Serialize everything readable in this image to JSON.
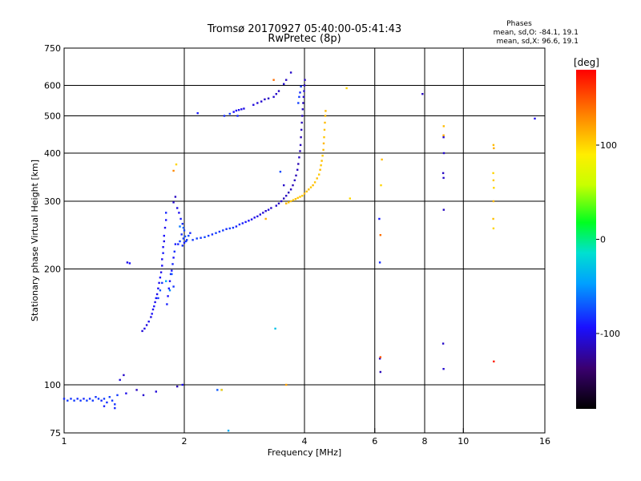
{
  "chart_data": {
    "type": "scatter",
    "title": "Tromsø 20170927 05:40:00-05:41:43",
    "subtitle": "RwPretec (8p)",
    "xlabel": "Frequency [MHz]",
    "ylabel": "Stationary phase Virtual Height [km]",
    "x_scale": "log",
    "y_scale": "log",
    "xlim": [
      1,
      16
    ],
    "ylim": [
      75,
      750
    ],
    "x_ticks": [
      1,
      2,
      4,
      6,
      8,
      10,
      16
    ],
    "y_ticks": [
      75,
      100,
      200,
      300,
      400,
      500,
      600,
      750
    ],
    "grid": true,
    "stats": {
      "heading": "Phases",
      "line_o": "mean, sd,O: -84.1, 19.1",
      "line_x": "mean, sd,X:  96.6, 19.1"
    },
    "colorbar": {
      "label": "[deg]",
      "range": [
        -180,
        180
      ],
      "ticks": [
        100,
        0,
        -100
      ]
    },
    "series": [
      {
        "name": "",
        "mode": "O",
        "points": [
          [
            1.0,
            92,
            -85
          ],
          [
            1.02,
            91,
            -80
          ],
          [
            1.04,
            92,
            -82
          ],
          [
            1.06,
            91,
            -79
          ],
          [
            1.08,
            92,
            -84
          ],
          [
            1.1,
            91,
            -81
          ],
          [
            1.12,
            92,
            -86
          ],
          [
            1.14,
            91,
            -78
          ],
          [
            1.16,
            92,
            -83
          ],
          [
            1.18,
            91,
            -80
          ],
          [
            1.2,
            93,
            -82
          ],
          [
            1.22,
            92,
            -79
          ],
          [
            1.24,
            91,
            -85
          ],
          [
            1.26,
            92,
            -80
          ],
          [
            1.28,
            90,
            -84
          ],
          [
            1.3,
            93,
            -78
          ],
          [
            1.32,
            91,
            -81
          ],
          [
            1.34,
            89,
            -83
          ],
          [
            1.36,
            94,
            -80
          ],
          [
            1.26,
            88,
            -88
          ],
          [
            1.34,
            87,
            -86
          ],
          [
            1.38,
            103,
            -105
          ],
          [
            1.41,
            106,
            -110
          ],
          [
            1.43,
            95,
            -100
          ],
          [
            1.52,
            97,
            -112
          ],
          [
            1.58,
            94,
            -108
          ],
          [
            1.7,
            96,
            -105
          ],
          [
            1.92,
            99,
            -115
          ],
          [
            1.98,
            100,
            -95
          ],
          [
            2.48,
            97,
            -86
          ],
          [
            2.58,
            76,
            -40
          ],
          [
            1.44,
            208,
            -100
          ],
          [
            1.46,
            207,
            -95
          ],
          [
            1.57,
            138,
            -105
          ],
          [
            1.59,
            140,
            -100
          ],
          [
            1.61,
            143,
            -104
          ],
          [
            1.63,
            146,
            -98
          ],
          [
            1.65,
            150,
            -102
          ],
          [
            1.66,
            153,
            -95
          ],
          [
            1.67,
            157,
            -100
          ],
          [
            1.68,
            160,
            -92
          ],
          [
            1.69,
            164,
            -99
          ],
          [
            1.7,
            168,
            -94
          ],
          [
            1.71,
            172,
            -100
          ],
          [
            1.72,
            178,
            -96
          ],
          [
            1.73,
            184,
            -98
          ],
          [
            1.74,
            190,
            -92
          ],
          [
            1.75,
            196,
            -100
          ],
          [
            1.76,
            204,
            -95
          ],
          [
            1.76,
            212,
            -98
          ],
          [
            1.77,
            220,
            -90
          ],
          [
            1.77,
            228,
            -96
          ],
          [
            1.78,
            236,
            -100
          ],
          [
            1.78,
            244,
            -94
          ],
          [
            1.79,
            256,
            -98
          ],
          [
            1.8,
            268,
            -92
          ],
          [
            1.8,
            280,
            -86
          ],
          [
            1.81,
            162,
            -88
          ],
          [
            1.82,
            170,
            -94
          ],
          [
            1.83,
            178,
            -90
          ],
          [
            1.84,
            186,
            -96
          ],
          [
            1.85,
            194,
            -88
          ],
          [
            1.86,
            198,
            -92
          ],
          [
            1.87,
            206,
            -86
          ],
          [
            1.88,
            214,
            -94
          ],
          [
            1.89,
            222,
            -84
          ],
          [
            1.9,
            232,
            -90
          ],
          [
            1.72,
            168,
            -80
          ],
          [
            1.74,
            176,
            -70
          ],
          [
            1.76,
            184,
            -82
          ],
          [
            1.8,
            186,
            -40
          ],
          [
            1.84,
            176,
            -55
          ],
          [
            1.88,
            180,
            -82
          ],
          [
            1.86,
            194,
            -72
          ],
          [
            1.88,
            298,
            -108
          ],
          [
            1.9,
            308,
            -112
          ],
          [
            1.92,
            288,
            -102
          ],
          [
            1.94,
            280,
            -98
          ],
          [
            1.96,
            270,
            -90
          ],
          [
            1.98,
            262,
            -85
          ],
          [
            1.99,
            256,
            -70
          ],
          [
            2.0,
            252,
            -78
          ],
          [
            1.95,
            258,
            -60
          ],
          [
            1.97,
            246,
            -85
          ],
          [
            1.99,
            240,
            -80
          ],
          [
            2.01,
            243,
            -72
          ],
          [
            2.03,
            238,
            -82
          ],
          [
            2.05,
            244,
            -75
          ],
          [
            2.07,
            248,
            -86
          ],
          [
            1.93,
            232,
            -88
          ],
          [
            1.95,
            236,
            -78
          ],
          [
            1.98,
            230,
            -84
          ],
          [
            2.0,
            234,
            -90
          ],
          [
            2.02,
            236,
            -80
          ],
          [
            2.1,
            238,
            -80
          ],
          [
            2.15,
            240,
            -78
          ],
          [
            2.2,
            241,
            -82
          ],
          [
            2.25,
            242,
            -75
          ],
          [
            2.3,
            244,
            -80
          ],
          [
            2.35,
            246,
            -84
          ],
          [
            2.4,
            248,
            -78
          ],
          [
            2.45,
            250,
            -82
          ],
          [
            2.5,
            252,
            -80
          ],
          [
            2.55,
            254,
            -85
          ],
          [
            2.6,
            255,
            -78
          ],
          [
            2.65,
            256,
            -82
          ],
          [
            2.7,
            258,
            -88
          ],
          [
            2.75,
            261,
            -84
          ],
          [
            2.8,
            263,
            -90
          ],
          [
            2.85,
            265,
            -92
          ],
          [
            2.9,
            267,
            -95
          ],
          [
            2.95,
            269,
            -98
          ],
          [
            3.0,
            272,
            -100
          ],
          [
            3.05,
            274,
            -102
          ],
          [
            3.1,
            277,
            -104
          ],
          [
            3.15,
            280,
            -106
          ],
          [
            3.2,
            283,
            -108
          ],
          [
            3.25,
            285,
            -105
          ],
          [
            3.3,
            288,
            -110
          ],
          [
            3.4,
            292,
            -108
          ],
          [
            3.45,
            296,
            -112
          ],
          [
            3.5,
            300,
            -110
          ],
          [
            3.55,
            305,
            -114
          ],
          [
            3.6,
            310,
            -112
          ],
          [
            3.65,
            316,
            -115
          ],
          [
            3.7,
            322,
            -113
          ],
          [
            3.74,
            330,
            -116
          ],
          [
            3.78,
            340,
            -112
          ],
          [
            3.81,
            350,
            -115
          ],
          [
            3.84,
            362,
            -113
          ],
          [
            3.86,
            375,
            -116
          ],
          [
            3.88,
            390,
            -112
          ],
          [
            3.9,
            405,
            -115
          ],
          [
            3.91,
            420,
            -113
          ],
          [
            3.92,
            440,
            -116
          ],
          [
            3.93,
            460,
            -112
          ],
          [
            3.94,
            480,
            -115
          ],
          [
            3.95,
            500,
            -113
          ],
          [
            3.96,
            520,
            -110
          ],
          [
            3.97,
            540,
            -112
          ],
          [
            3.98,
            560,
            -108
          ],
          [
            3.99,
            580,
            -110
          ],
          [
            4.0,
            600,
            -112
          ],
          [
            4.01,
            620,
            -114
          ],
          [
            3.88,
            560,
            -80
          ],
          [
            3.9,
            575,
            -85
          ],
          [
            3.86,
            540,
            -78
          ],
          [
            3.92,
            596,
            -82
          ],
          [
            3.7,
            648,
            -110
          ],
          [
            3.6,
            620,
            -112
          ],
          [
            3.55,
            605,
            -108
          ],
          [
            3.45,
            580,
            -112
          ],
          [
            3.4,
            570,
            -110
          ],
          [
            3.35,
            560,
            -108
          ],
          [
            3.25,
            555,
            -112
          ],
          [
            3.18,
            552,
            -110
          ],
          [
            3.12,
            545,
            -108
          ],
          [
            3.05,
            540,
            -106
          ],
          [
            2.98,
            534,
            -104
          ],
          [
            2.82,
            522,
            -102
          ],
          [
            2.78,
            520,
            -100
          ],
          [
            2.74,
            518,
            -98
          ],
          [
            2.7,
            516,
            -96
          ],
          [
            2.66,
            512,
            -94
          ],
          [
            2.6,
            506,
            -80
          ],
          [
            2.52,
            500,
            -85
          ],
          [
            2.16,
            508,
            -90
          ],
          [
            3.55,
            330,
            -110
          ],
          [
            2.72,
            500,
            -86
          ],
          [
            3.48,
            358,
            -75
          ],
          [
            2.42,
            97,
            -70
          ],
          [
            3.38,
            140,
            -30
          ],
          [
            6.18,
            117,
            -110
          ],
          [
            6.2,
            108,
            -115
          ],
          [
            6.18,
            208,
            -85
          ],
          [
            6.16,
            270,
            -90
          ],
          [
            7.9,
            570,
            -112
          ],
          [
            8.92,
            440,
            -110
          ],
          [
            8.94,
            400,
            -108
          ],
          [
            8.9,
            355,
            -112
          ],
          [
            8.92,
            345,
            -110
          ],
          [
            8.93,
            285,
            -112
          ],
          [
            8.9,
            128,
            -110
          ],
          [
            8.92,
            110,
            -108
          ],
          [
            15.1,
            492,
            -100
          ]
        ]
      },
      {
        "name": "",
        "mode": "X",
        "points": [
          [
            1.88,
            360,
            130
          ],
          [
            1.91,
            374,
            100
          ],
          [
            2.48,
            97,
            95
          ],
          [
            3.35,
            620,
            140
          ],
          [
            3.6,
            296,
            110
          ],
          [
            3.65,
            298,
            105
          ],
          [
            3.7,
            300,
            108
          ],
          [
            3.75,
            302,
            104
          ],
          [
            3.8,
            304,
            110
          ],
          [
            3.85,
            306,
            106
          ],
          [
            3.9,
            308,
            108
          ],
          [
            3.95,
            310,
            104
          ],
          [
            4.0,
            314,
            110
          ],
          [
            4.05,
            318,
            106
          ],
          [
            4.1,
            322,
            108
          ],
          [
            4.15,
            326,
            104
          ],
          [
            4.2,
            330,
            110
          ],
          [
            4.25,
            336,
            106
          ],
          [
            4.3,
            344,
            108
          ],
          [
            4.35,
            352,
            104
          ],
          [
            4.38,
            362,
            110
          ],
          [
            4.4,
            372,
            106
          ],
          [
            4.42,
            382,
            108
          ],
          [
            4.44,
            394,
            104
          ],
          [
            4.46,
            408,
            110
          ],
          [
            4.47,
            424,
            112
          ],
          [
            4.48,
            440,
            106
          ],
          [
            4.49,
            460,
            108
          ],
          [
            4.5,
            480,
            110
          ],
          [
            4.51,
            500,
            112
          ],
          [
            4.52,
            515,
            110
          ],
          [
            5.2,
            305,
            100
          ],
          [
            3.6,
            100,
            120
          ],
          [
            3.2,
            270,
            115
          ],
          [
            5.1,
            590,
            100
          ],
          [
            6.25,
            385,
            110
          ],
          [
            6.22,
            330,
            100
          ],
          [
            6.2,
            245,
            140
          ],
          [
            6.2,
            118,
            150
          ],
          [
            8.93,
            470,
            110
          ],
          [
            8.92,
            445,
            118
          ],
          [
            11.9,
            420,
            110
          ],
          [
            11.92,
            412,
            115
          ],
          [
            11.88,
            355,
            100
          ],
          [
            11.9,
            340,
            105
          ],
          [
            11.92,
            325,
            100
          ],
          [
            11.9,
            300,
            112
          ],
          [
            11.88,
            270,
            108
          ],
          [
            11.9,
            255,
            100
          ],
          [
            11.92,
            115,
            170
          ]
        ]
      }
    ]
  }
}
